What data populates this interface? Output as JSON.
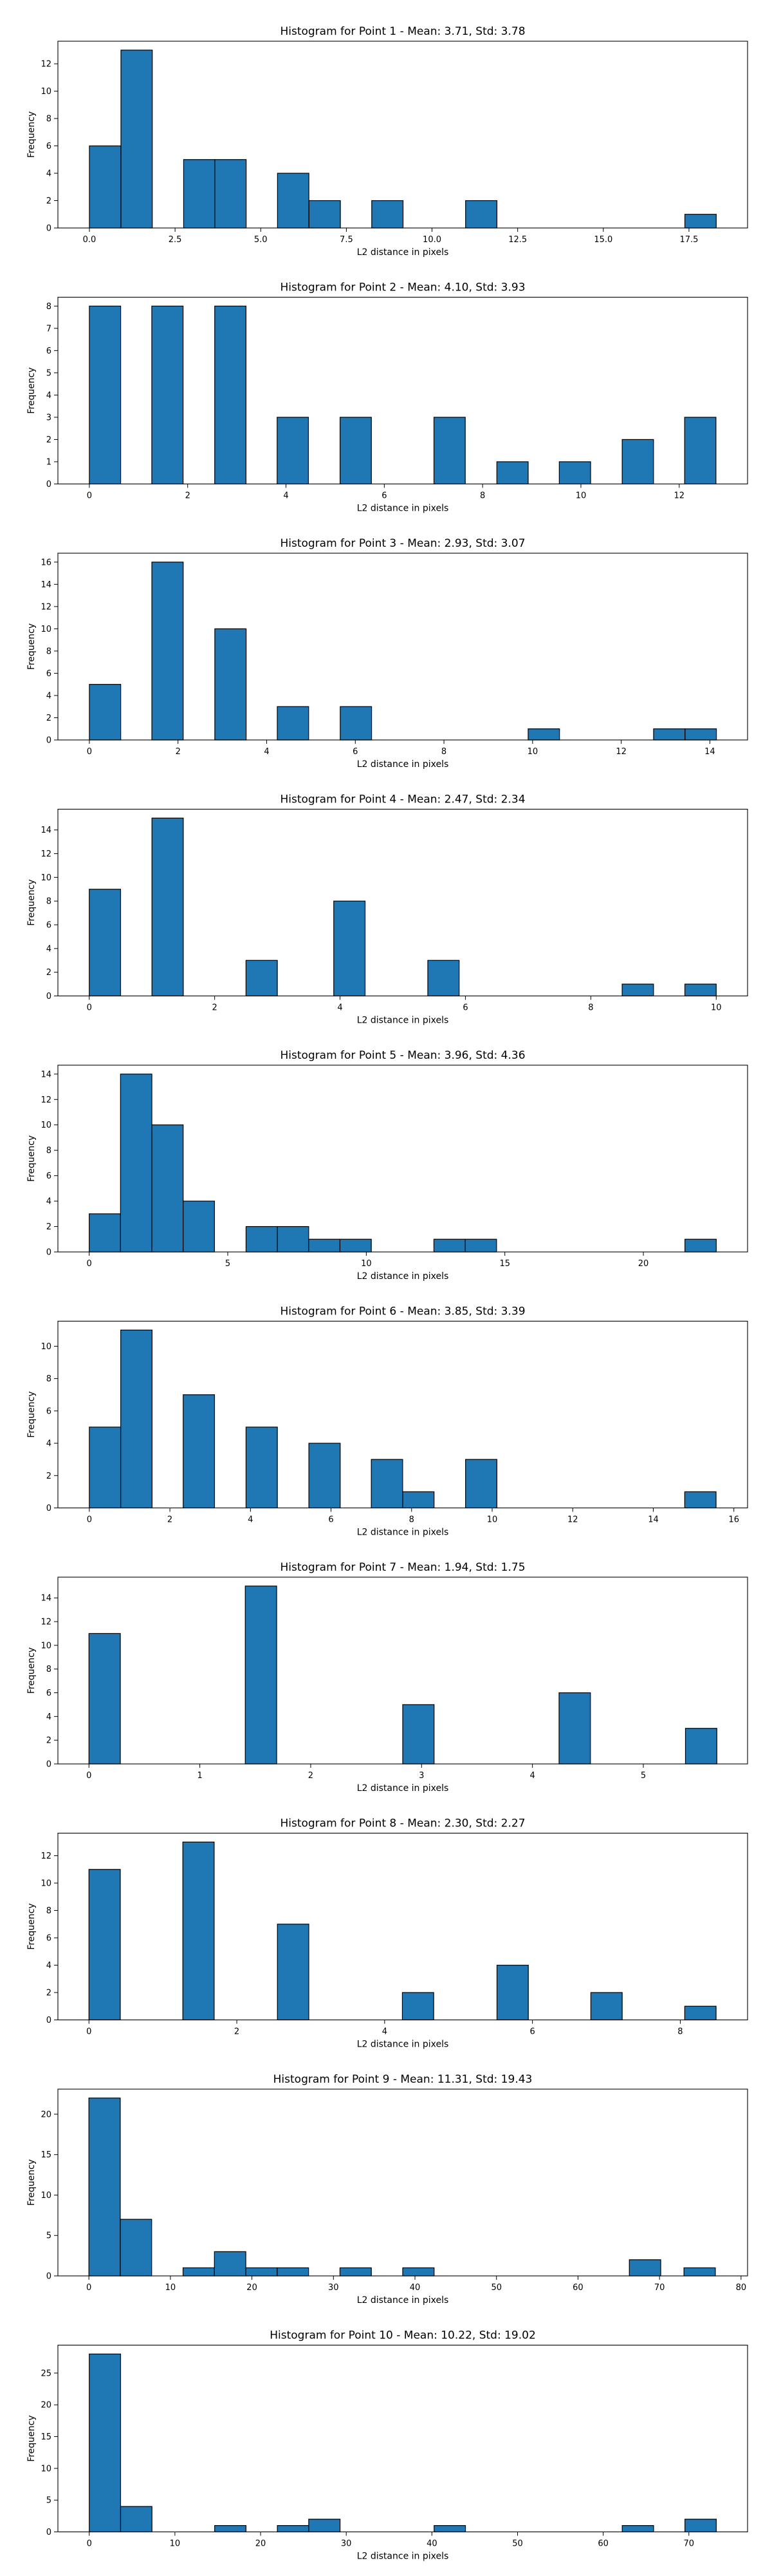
{
  "figure": {
    "bar_color": "#1f77b4",
    "edge_color": "#000000",
    "background": "#ffffff"
  },
  "chart_data": [
    {
      "type": "bar",
      "title": "Histogram for Point 1 - Mean: 3.71, Std: 3.78",
      "xlabel": "L2 distance in pixels",
      "ylabel": "Frequency",
      "xlim": [
        -0.92,
        19.21
      ],
      "ylim": [
        0,
        13.65
      ],
      "xticks": [
        0,
        2.5,
        5,
        7.5,
        10,
        12.5,
        15,
        17.5
      ],
      "xtick_labels": [
        "0.0",
        "2.5",
        "5.0",
        "7.5",
        "10.0",
        "12.5",
        "15.0",
        "17.5"
      ],
      "yticks": [
        0,
        2,
        4,
        6,
        8,
        10,
        12
      ],
      "bin_width": 0.915,
      "bins": [
        {
          "x": 0.0,
          "count": 6
        },
        {
          "x": 0.92,
          "count": 13
        },
        {
          "x": 2.75,
          "count": 5
        },
        {
          "x": 3.66,
          "count": 5
        },
        {
          "x": 5.49,
          "count": 4
        },
        {
          "x": 6.41,
          "count": 2
        },
        {
          "x": 8.24,
          "count": 2
        },
        {
          "x": 10.98,
          "count": 2
        },
        {
          "x": 17.38,
          "count": 1
        }
      ]
    },
    {
      "type": "bar",
      "title": "Histogram for Point 2 - Mean: 4.10, Std: 3.93",
      "xlabel": "L2 distance in pixels",
      "ylabel": "Frequency",
      "xlim": [
        -0.64,
        13.39
      ],
      "ylim": [
        0,
        8.4
      ],
      "xticks": [
        0,
        2,
        4,
        6,
        8,
        10,
        12
      ],
      "xtick_labels": [
        "0",
        "2",
        "4",
        "6",
        "8",
        "10",
        "12"
      ],
      "yticks": [
        0,
        1,
        2,
        3,
        4,
        5,
        6,
        7,
        8
      ],
      "bin_width": 0.637,
      "bins": [
        {
          "x": 0.0,
          "count": 8
        },
        {
          "x": 1.27,
          "count": 8
        },
        {
          "x": 2.55,
          "count": 8
        },
        {
          "x": 3.82,
          "count": 3
        },
        {
          "x": 5.1,
          "count": 3
        },
        {
          "x": 7.01,
          "count": 3
        },
        {
          "x": 8.29,
          "count": 1
        },
        {
          "x": 9.56,
          "count": 1
        },
        {
          "x": 10.84,
          "count": 2
        },
        {
          "x": 12.11,
          "count": 3
        }
      ]
    },
    {
      "type": "bar",
      "title": "Histogram for Point 3 - Mean: 2.93, Std: 3.07",
      "xlabel": "L2 distance in pixels",
      "ylabel": "Frequency",
      "xlim": [
        -0.71,
        14.85
      ],
      "ylim": [
        0,
        16.8
      ],
      "xticks": [
        0,
        2,
        4,
        6,
        8,
        10,
        12,
        14
      ],
      "xtick_labels": [
        "0",
        "2",
        "4",
        "6",
        "8",
        "10",
        "12",
        "14"
      ],
      "yticks": [
        0,
        2,
        4,
        6,
        8,
        10,
        12,
        14,
        16
      ],
      "bin_width": 0.707,
      "bins": [
        {
          "x": 0.0,
          "count": 5
        },
        {
          "x": 1.41,
          "count": 16
        },
        {
          "x": 2.83,
          "count": 10
        },
        {
          "x": 4.24,
          "count": 3
        },
        {
          "x": 5.66,
          "count": 3
        },
        {
          "x": 9.9,
          "count": 1
        },
        {
          "x": 12.73,
          "count": 1
        },
        {
          "x": 13.44,
          "count": 1
        }
      ]
    },
    {
      "type": "bar",
      "title": "Histogram for Point 4 - Mean: 2.47, Std: 2.34",
      "xlabel": "L2 distance in pixels",
      "ylabel": "Frequency",
      "xlim": [
        -0.5,
        10.5
      ],
      "ylim": [
        0,
        15.75
      ],
      "xticks": [
        0,
        2,
        4,
        6,
        8,
        10
      ],
      "xtick_labels": [
        "0",
        "2",
        "4",
        "6",
        "8",
        "10"
      ],
      "yticks": [
        0,
        2,
        4,
        6,
        8,
        10,
        12,
        14
      ],
      "bin_width": 0.5,
      "bins": [
        {
          "x": 0.0,
          "count": 9
        },
        {
          "x": 1.0,
          "count": 15
        },
        {
          "x": 2.5,
          "count": 3
        },
        {
          "x": 3.9,
          "count": 8
        },
        {
          "x": 5.4,
          "count": 3
        },
        {
          "x": 8.5,
          "count": 1
        },
        {
          "x": 9.5,
          "count": 1
        }
      ]
    },
    {
      "type": "bar",
      "title": "Histogram for Point 5 - Mean: 3.96, Std: 4.36",
      "xlabel": "L2 distance in pixels",
      "ylabel": "Frequency",
      "xlim": [
        -1.13,
        23.76
      ],
      "ylim": [
        0,
        14.7
      ],
      "xticks": [
        0,
        5,
        10,
        15,
        20
      ],
      "xtick_labels": [
        "0",
        "5",
        "10",
        "15",
        "20"
      ],
      "yticks": [
        0,
        2,
        4,
        6,
        8,
        10,
        12,
        14
      ],
      "bin_width": 1.131,
      "bins": [
        {
          "x": 0.0,
          "count": 3
        },
        {
          "x": 1.13,
          "count": 14
        },
        {
          "x": 2.26,
          "count": 10
        },
        {
          "x": 3.39,
          "count": 4
        },
        {
          "x": 5.66,
          "count": 2
        },
        {
          "x": 6.79,
          "count": 2
        },
        {
          "x": 7.92,
          "count": 1
        },
        {
          "x": 9.05,
          "count": 1
        },
        {
          "x": 12.44,
          "count": 1
        },
        {
          "x": 13.57,
          "count": 1
        },
        {
          "x": 21.5,
          "count": 1
        }
      ]
    },
    {
      "type": "bar",
      "title": "Histogram for Point 6 - Mean: 3.85, Std: 3.39",
      "xlabel": "L2 distance in pixels",
      "ylabel": "Frequency",
      "xlim": [
        -0.78,
        16.34
      ],
      "ylim": [
        0,
        11.55
      ],
      "xticks": [
        0,
        2,
        4,
        6,
        8,
        10,
        12,
        14,
        16
      ],
      "xtick_labels": [
        "0",
        "2",
        "4",
        "6",
        "8",
        "10",
        "12",
        "14",
        "16"
      ],
      "yticks": [
        0,
        2,
        4,
        6,
        8,
        10
      ],
      "bin_width": 0.778,
      "bins": [
        {
          "x": 0.0,
          "count": 5
        },
        {
          "x": 0.78,
          "count": 11
        },
        {
          "x": 2.33,
          "count": 7
        },
        {
          "x": 3.89,
          "count": 5
        },
        {
          "x": 5.45,
          "count": 4
        },
        {
          "x": 7.0,
          "count": 3
        },
        {
          "x": 7.78,
          "count": 1
        },
        {
          "x": 9.34,
          "count": 3
        },
        {
          "x": 14.78,
          "count": 1
        }
      ]
    },
    {
      "type": "bar",
      "title": "Histogram for Point 7 - Mean: 1.94, Std: 1.75",
      "xlabel": "L2 distance in pixels",
      "ylabel": "Frequency",
      "xlim": [
        -0.28,
        5.94
      ],
      "ylim": [
        0,
        15.75
      ],
      "xticks": [
        0,
        1,
        2,
        3,
        4,
        5
      ],
      "xtick_labels": [
        "0",
        "1",
        "2",
        "3",
        "4",
        "5"
      ],
      "yticks": [
        0,
        2,
        4,
        6,
        8,
        10,
        12,
        14
      ],
      "bin_width": 0.283,
      "bins": [
        {
          "x": 0.0,
          "count": 11
        },
        {
          "x": 1.41,
          "count": 15
        },
        {
          "x": 2.83,
          "count": 5
        },
        {
          "x": 4.24,
          "count": 6
        },
        {
          "x": 5.38,
          "count": 3
        }
      ]
    },
    {
      "type": "bar",
      "title": "Histogram for Point 8 - Mean: 2.30, Std: 2.27",
      "xlabel": "L2 distance in pixels",
      "ylabel": "Frequency",
      "xlim": [
        -0.42,
        8.91
      ],
      "ylim": [
        0,
        13.65
      ],
      "xticks": [
        0,
        2,
        4,
        6,
        8
      ],
      "xtick_labels": [
        "0",
        "2",
        "4",
        "6",
        "8"
      ],
      "yticks": [
        0,
        2,
        4,
        6,
        8,
        10,
        12
      ],
      "bin_width": 0.424,
      "bins": [
        {
          "x": 0.0,
          "count": 11
        },
        {
          "x": 1.27,
          "count": 13
        },
        {
          "x": 2.55,
          "count": 7
        },
        {
          "x": 4.24,
          "count": 2
        },
        {
          "x": 5.52,
          "count": 4
        },
        {
          "x": 6.79,
          "count": 2
        },
        {
          "x": 8.06,
          "count": 1
        }
      ]
    },
    {
      "type": "bar",
      "title": "Histogram for Point 9 - Mean: 11.31, Std: 19.43",
      "xlabel": "L2 distance in pixels",
      "ylabel": "Frequency",
      "xlim": [
        -3.8,
        80.8
      ],
      "ylim": [
        0,
        23.1
      ],
      "xticks": [
        0,
        10,
        20,
        30,
        40,
        50,
        60,
        70,
        80
      ],
      "xtick_labels": [
        "0",
        "10",
        "20",
        "30",
        "40",
        "50",
        "60",
        "70",
        "80"
      ],
      "yticks": [
        0,
        5,
        10,
        15,
        20
      ],
      "bin_width": 3.85,
      "bins": [
        {
          "x": 0.0,
          "count": 22
        },
        {
          "x": 3.85,
          "count": 7
        },
        {
          "x": 11.55,
          "count": 1
        },
        {
          "x": 15.4,
          "count": 3
        },
        {
          "x": 19.25,
          "count": 1
        },
        {
          "x": 23.1,
          "count": 1
        },
        {
          "x": 30.8,
          "count": 1
        },
        {
          "x": 38.5,
          "count": 1
        },
        {
          "x": 66.3,
          "count": 2
        },
        {
          "x": 73.0,
          "count": 1
        }
      ]
    },
    {
      "type": "bar",
      "title": "Histogram for Point 10 - Mean: 10.22, Std: 19.02",
      "xlabel": "L2 distance in pixels",
      "ylabel": "Frequency",
      "xlim": [
        -3.66,
        76.85
      ],
      "ylim": [
        0,
        29.4
      ],
      "xticks": [
        0,
        10,
        20,
        30,
        40,
        50,
        60,
        70
      ],
      "xtick_labels": [
        "0",
        "10",
        "20",
        "30",
        "40",
        "50",
        "60",
        "70"
      ],
      "yticks": [
        0,
        5,
        10,
        15,
        20,
        25
      ],
      "bin_width": 3.66,
      "bins": [
        {
          "x": 0.0,
          "count": 28
        },
        {
          "x": 3.66,
          "count": 4
        },
        {
          "x": 14.64,
          "count": 1
        },
        {
          "x": 21.96,
          "count": 1
        },
        {
          "x": 25.62,
          "count": 2
        },
        {
          "x": 40.26,
          "count": 1
        },
        {
          "x": 62.22,
          "count": 1
        },
        {
          "x": 69.54,
          "count": 2
        }
      ]
    }
  ]
}
